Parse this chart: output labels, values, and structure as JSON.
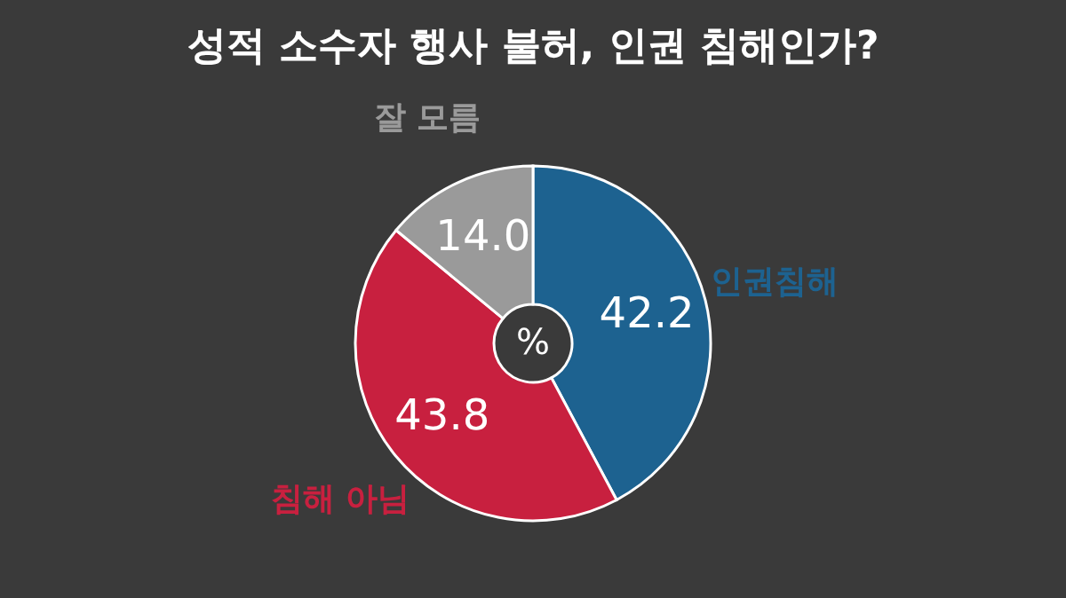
{
  "chart_data": {
    "type": "donut",
    "title": "성적 소수자 행사 불허, 인권 침해인가?",
    "categories": [
      "인권침해",
      "침해 아님",
      "잘 모름"
    ],
    "values": [
      42.2,
      43.8,
      14.0
    ],
    "colors": [
      "#1d6290",
      "#c8203f",
      "#9a9a9a"
    ],
    "value_labels": [
      "42.2",
      "43.8",
      "14.0"
    ],
    "annotations": [
      "%"
    ]
  }
}
